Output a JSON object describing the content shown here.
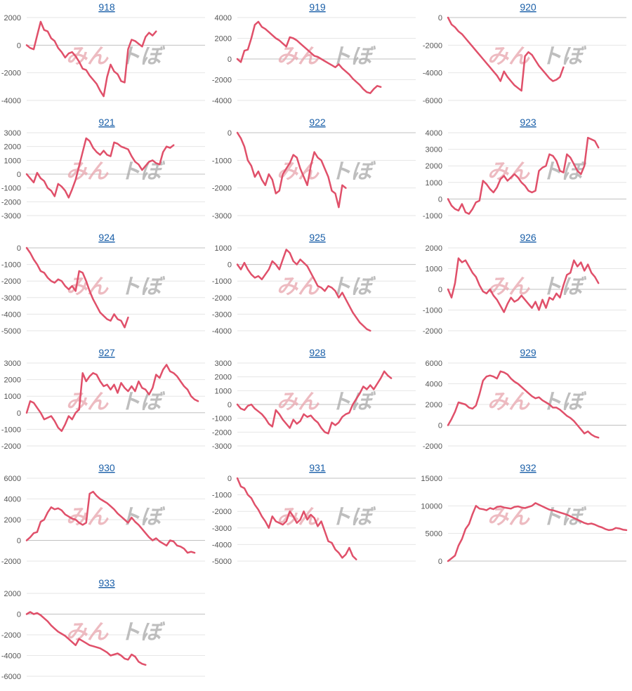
{
  "watermark": {
    "part_a": "みん",
    "part_b": "ト​ぼ"
  },
  "colors": {
    "line": "#e0506a",
    "title": "#1a5fa8"
  },
  "chart_data": [
    {
      "type": "line",
      "title": "918",
      "ylim": [
        -4000,
        2000
      ],
      "yticks": [
        2000,
        0,
        -2000,
        -4000
      ],
      "values": [
        0,
        -200,
        -300,
        700,
        1700,
        1100,
        1000,
        500,
        300,
        -200,
        -500,
        -900,
        -600,
        -500,
        -800,
        -1200,
        -1700,
        -1800,
        -2200,
        -2500,
        -2800,
        -3300,
        -3700,
        -2300,
        -1400,
        -1900,
        -2100,
        -2600,
        -2700,
        -300,
        400,
        300,
        100,
        -100,
        600,
        900,
        700,
        1000
      ]
    },
    {
      "type": "line",
      "title": "919",
      "ylim": [
        -4000,
        4000
      ],
      "yticks": [
        4000,
        2000,
        0,
        -2000,
        -4000
      ],
      "values": [
        0,
        -300,
        800,
        900,
        2000,
        3300,
        3600,
        3100,
        2900,
        2600,
        2300,
        2000,
        1800,
        1500,
        1200,
        2100,
        2000,
        1800,
        1500,
        1200,
        900,
        600,
        300,
        200,
        0,
        -200,
        -400,
        -600,
        -800,
        -500,
        -900,
        -1200,
        -1500,
        -1900,
        -2200,
        -2500,
        -2900,
        -3200,
        -3300,
        -2900,
        -2600,
        -2700
      ]
    },
    {
      "type": "line",
      "title": "920",
      "ylim": [
        -6000,
        0
      ],
      "yticks": [
        0,
        -2000,
        -4000,
        -6000
      ],
      "values": [
        0,
        -500,
        -700,
        -1000,
        -1200,
        -1500,
        -1800,
        -2100,
        -2400,
        -2700,
        -3000,
        -3300,
        -3600,
        -3900,
        -4200,
        -4600,
        -3900,
        -4300,
        -4600,
        -4900,
        -5100,
        -5300,
        -2800,
        -2500,
        -2700,
        -3100,
        -3500,
        -3800,
        -4100,
        -4400,
        -4600,
        -4500,
        -4300,
        -3600
      ]
    },
    {
      "type": "line",
      "title": "921",
      "ylim": [
        -3000,
        3000
      ],
      "yticks": [
        3000,
        2000,
        1000,
        0,
        -1000,
        -2000,
        -3000
      ],
      "values": [
        0,
        -300,
        -600,
        100,
        -300,
        -500,
        -1000,
        -1200,
        -1600,
        -700,
        -900,
        -1200,
        -1700,
        -1100,
        -400,
        600,
        1600,
        2600,
        2400,
        1900,
        1600,
        1400,
        1700,
        1400,
        1300,
        2300,
        2200,
        2000,
        1900,
        1800,
        1300,
        900,
        700,
        300,
        600,
        900,
        1000,
        800,
        700,
        1600,
        2000,
        1900,
        2100
      ]
    },
    {
      "type": "line",
      "title": "922",
      "ylim": [
        -3000,
        0
      ],
      "yticks": [
        0,
        -1000,
        -2000,
        -3000
      ],
      "values": [
        0,
        -200,
        -500,
        -1000,
        -1200,
        -1600,
        -1400,
        -1700,
        -1900,
        -1500,
        -1700,
        -2200,
        -2100,
        -1500,
        -1300,
        -1100,
        -800,
        -900,
        -1300,
        -1600,
        -1900,
        -1200,
        -700,
        -900,
        -1000,
        -1300,
        -1600,
        -2100,
        -2200,
        -2700,
        -1900,
        -2000
      ]
    },
    {
      "type": "line",
      "title": "923",
      "ylim": [
        -1000,
        4000
      ],
      "yticks": [
        4000,
        3000,
        2000,
        1000,
        0,
        -1000
      ],
      "values": [
        0,
        -400,
        -600,
        -700,
        -300,
        -800,
        -900,
        -600,
        -200,
        -100,
        1100,
        900,
        600,
        400,
        700,
        1200,
        1400,
        1100,
        1300,
        1500,
        1300,
        1000,
        800,
        500,
        400,
        500,
        1700,
        1900,
        2000,
        2700,
        2600,
        2300,
        1700,
        1600,
        2700,
        2500,
        2100,
        1700,
        1500,
        2000,
        3700,
        3600,
        3500,
        3100
      ]
    },
    {
      "type": "line",
      "title": "924",
      "ylim": [
        -5000,
        0
      ],
      "yticks": [
        0,
        -1000,
        -2000,
        -3000,
        -4000,
        -5000
      ],
      "values": [
        0,
        -300,
        -700,
        -1000,
        -1400,
        -1500,
        -1800,
        -2000,
        -2100,
        -1900,
        -2000,
        -2300,
        -2500,
        -2300,
        -2600,
        -1400,
        -1500,
        -2000,
        -2600,
        -3100,
        -3500,
        -3900,
        -4100,
        -4300,
        -4400,
        -4000,
        -4300,
        -4400,
        -4800,
        -4200
      ]
    },
    {
      "type": "line",
      "title": "925",
      "ylim": [
        -4000,
        1000
      ],
      "yticks": [
        1000,
        0,
        -1000,
        -2000,
        -3000,
        -4000
      ],
      "values": [
        0,
        -300,
        100,
        -300,
        -600,
        -800,
        -700,
        -900,
        -600,
        -300,
        200,
        0,
        -300,
        300,
        900,
        700,
        200,
        0,
        300,
        100,
        -100,
        -500,
        -900,
        -1300,
        -1400,
        -1600,
        -1300,
        -1400,
        -1600,
        -2000,
        -1700,
        -2100,
        -2500,
        -2900,
        -3200,
        -3500,
        -3700,
        -3900,
        -4000
      ]
    },
    {
      "type": "line",
      "title": "926",
      "ylim": [
        -2000,
        2000
      ],
      "yticks": [
        2000,
        1000,
        0,
        -1000,
        -2000
      ],
      "values": [
        0,
        -400,
        300,
        1500,
        1300,
        1400,
        1100,
        800,
        600,
        200,
        -100,
        -200,
        0,
        -300,
        -500,
        -800,
        -1100,
        -700,
        -400,
        -600,
        -500,
        -300,
        -500,
        -700,
        -900,
        -600,
        -1000,
        -500,
        -900,
        -400,
        -500,
        -200,
        -400,
        200,
        700,
        800,
        1400,
        1100,
        1300,
        900,
        1200,
        800,
        600,
        300
      ]
    },
    {
      "type": "line",
      "title": "927",
      "ylim": [
        -2000,
        3000
      ],
      "yticks": [
        3000,
        2000,
        1000,
        0,
        -1000,
        -2000
      ],
      "values": [
        0,
        700,
        600,
        300,
        0,
        -400,
        -300,
        -200,
        -500,
        -900,
        -1100,
        -700,
        -200,
        -400,
        0,
        200,
        2400,
        1900,
        2200,
        2400,
        2300,
        1900,
        1600,
        1700,
        1400,
        1700,
        1200,
        1800,
        1500,
        1300,
        1600,
        1300,
        1900,
        1500,
        1400,
        1100,
        1500,
        2300,
        2100,
        2600,
        2900,
        2500,
        2400,
        2200,
        1900,
        1600,
        1400,
        1000,
        800,
        700
      ]
    },
    {
      "type": "line",
      "title": "928",
      "ylim": [
        -3000,
        3000
      ],
      "yticks": [
        3000,
        2000,
        1000,
        0,
        -1000,
        -2000,
        -3000
      ],
      "values": [
        0,
        -300,
        -400,
        -100,
        0,
        -300,
        -500,
        -700,
        -1000,
        -1400,
        -1600,
        -400,
        -700,
        -1100,
        -1400,
        -1700,
        -1100,
        -1400,
        -1200,
        -700,
        -900,
        -800,
        -1100,
        -1300,
        -1700,
        -2000,
        -2100,
        -1300,
        -1500,
        -1300,
        -900,
        -700,
        -600,
        0,
        400,
        800,
        1300,
        1100,
        1400,
        1100,
        1500,
        1900,
        2400,
        2100,
        1900
      ]
    },
    {
      "type": "line",
      "title": "929",
      "ylim": [
        -2000,
        6000
      ],
      "yticks": [
        6000,
        4000,
        2000,
        0,
        -2000
      ],
      "values": [
        0,
        600,
        1300,
        2200,
        2100,
        2000,
        1700,
        1600,
        1900,
        3000,
        4300,
        4700,
        4800,
        4700,
        4500,
        5200,
        5100,
        4900,
        4500,
        4200,
        4000,
        3700,
        3400,
        3100,
        2800,
        2600,
        2700,
        2400,
        2200,
        2000,
        1700,
        1700,
        1500,
        1200,
        900,
        700,
        400,
        0,
        -400,
        -800,
        -600,
        -900,
        -1100,
        -1200
      ]
    },
    {
      "type": "line",
      "title": "930",
      "ylim": [
        -2000,
        6000
      ],
      "yticks": [
        6000,
        4000,
        2000,
        0,
        -2000
      ],
      "values": [
        0,
        300,
        700,
        800,
        1800,
        2000,
        2700,
        3200,
        3000,
        3100,
        2900,
        2500,
        2300,
        2100,
        2000,
        1700,
        1500,
        1700,
        4500,
        4700,
        4300,
        4000,
        3800,
        3600,
        3300,
        3000,
        2600,
        2300,
        2000,
        1700,
        2200,
        1800,
        1500,
        1100,
        700,
        300,
        0,
        200,
        -100,
        -300,
        -500,
        0,
        -100,
        -500,
        -600,
        -800,
        -1200,
        -1100,
        -1200
      ]
    },
    {
      "type": "line",
      "title": "931",
      "ylim": [
        -5000,
        0
      ],
      "yticks": [
        0,
        -1000,
        -2000,
        -3000,
        -4000,
        -5000
      ],
      "values": [
        0,
        -500,
        -600,
        -1000,
        -1200,
        -1600,
        -1900,
        -2300,
        -2600,
        -3000,
        -2300,
        -2600,
        -2700,
        -2800,
        -2600,
        -2000,
        -2300,
        -2700,
        -2500,
        -2000,
        -2500,
        -2200,
        -2400,
        -2900,
        -2600,
        -3200,
        -3800,
        -3900,
        -4300,
        -4500,
        -4800,
        -4600,
        -4200,
        -4700,
        -4900
      ]
    },
    {
      "type": "line",
      "title": "932",
      "ylim": [
        0,
        15000
      ],
      "yticks": [
        15000,
        10000,
        5000,
        0
      ],
      "values": [
        0,
        500,
        1000,
        2800,
        4000,
        5800,
        6700,
        8500,
        10000,
        9500,
        9400,
        9200,
        9600,
        9400,
        9800,
        9900,
        9700,
        9600,
        9500,
        9800,
        9900,
        9700,
        9600,
        9800,
        10000,
        10500,
        10200,
        9900,
        9600,
        9300,
        9200,
        9000,
        8800,
        8600,
        8400,
        8100,
        7800,
        7500,
        7200,
        6900,
        6700,
        6800,
        6600,
        6300,
        6100,
        5800,
        5600,
        5700,
        6000,
        5900,
        5700,
        5600
      ]
    },
    {
      "type": "line",
      "title": "933",
      "ylim": [
        -6000,
        2000
      ],
      "yticks": [
        2000,
        0,
        -2000,
        -4000,
        -6000
      ],
      "values": [
        0,
        200,
        0,
        100,
        -100,
        -400,
        -700,
        -1100,
        -1400,
        -1700,
        -1900,
        -2100,
        -2400,
        -2700,
        -3000,
        -2400,
        -2600,
        -2800,
        -3000,
        -3100,
        -3200,
        -3300,
        -3500,
        -3700,
        -4000,
        -3900,
        -3800,
        -4000,
        -4300,
        -4400,
        -3900,
        -4100,
        -4600,
        -4800,
        -4900
      ]
    }
  ]
}
